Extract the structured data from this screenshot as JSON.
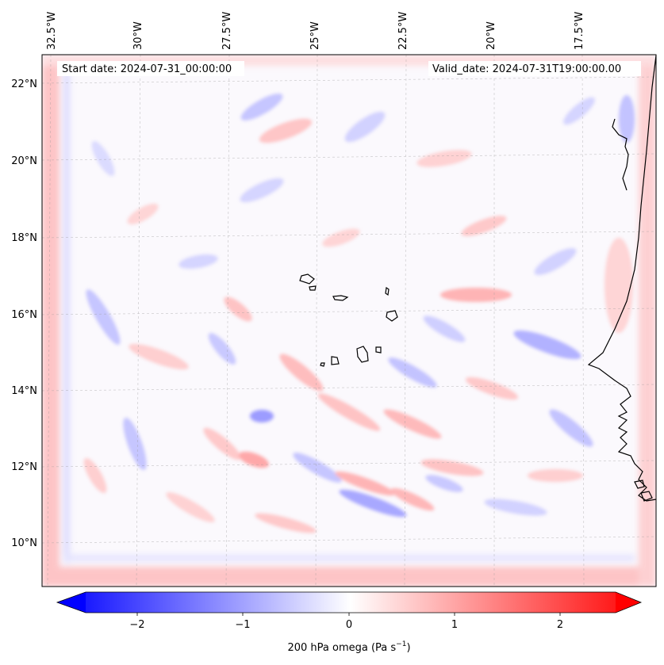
{
  "map": {
    "start_date_label": "Start date: 2024-07-31_00:00:00",
    "valid_date_label": "Valid_date: 2024-07-31T19:00:00.00",
    "lon_ticks": [
      "32.5°W",
      "30°W",
      "27.5°W",
      "25°W",
      "22.5°W",
      "20°W",
      "17.5°W"
    ],
    "lat_ticks": [
      "22°N",
      "20°N",
      "18°N",
      "16°N",
      "14°N",
      "12°N",
      "10°N"
    ],
    "colormap": "bwr",
    "gridlines": true
  },
  "colorbar": {
    "ticks": [
      "−2",
      "−1",
      "0",
      "1",
      "2"
    ],
    "range": [
      -2.75,
      2.75
    ],
    "extend": "both",
    "label_main": "200 hPa omega (Pa s",
    "label_sup": "−1",
    "label_end": ")"
  }
}
